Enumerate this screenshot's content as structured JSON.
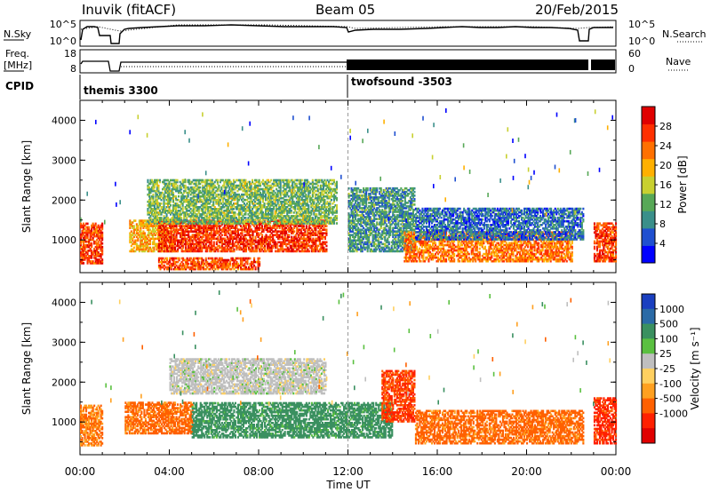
{
  "header": {
    "station": "Inuvik (fitACF)",
    "beam": "Beam 05",
    "date": "20/Feb/2015"
  },
  "top_panels": {
    "nsky_label": "N.Sky",
    "nsky_ticks": [
      "10^5",
      "10^0"
    ],
    "nsearch_label": "N.Search",
    "nsearch_ticks": [
      "10^5",
      "10^0"
    ],
    "freq_label": "Freq.",
    "freq_unit": "[MHz]",
    "freq_ticks": [
      "18",
      "8"
    ],
    "nave_label": "Nave",
    "nave_ticks": [
      "60",
      "0"
    ],
    "cpid_label": "CPID",
    "cpid_segments": [
      {
        "name": "themis 3300",
        "start_hour": 0
      },
      {
        "name": "twofsound -3503",
        "start_hour": 12
      }
    ]
  },
  "colors": {
    "power_scale": [
      "#0000ff",
      "#1f4fd0",
      "#3a8f8a",
      "#57a857",
      "#c8d030",
      "#ffb000",
      "#ff7000",
      "#ff3000",
      "#e00000"
    ],
    "velocity_scale": [
      "#1a3fc0",
      "#2a6aa6",
      "#3a9060",
      "#5ac040",
      "#bfbfbf",
      "#ffd060",
      "#ffa020",
      "#ff6000",
      "#ff2000",
      "#e00000"
    ]
  },
  "chart_data": [
    {
      "type": "heatmap",
      "name": "Power",
      "ylabel": "Slant Range [km]",
      "colorbar_label": "Power [dB]",
      "colorbar_ticks": [
        4,
        8,
        12,
        16,
        20,
        24,
        28
      ],
      "clim": [
        0,
        32
      ],
      "y_ticks": [
        1000,
        2000,
        3000,
        4000
      ],
      "ylim": [
        180,
        4500
      ],
      "xlim": [
        0,
        24
      ],
      "x_ticks": [
        "00:00",
        "04:00",
        "08:00",
        "12:00",
        "16:00",
        "20:00",
        "00:00"
      ],
      "regions": [
        {
          "t0": 0.0,
          "t1": 1.0,
          "r0": 400,
          "r1": 1400,
          "value": 26
        },
        {
          "t0": 2.2,
          "t1": 4.2,
          "r0": 700,
          "r1": 1500,
          "value": 20
        },
        {
          "t0": 3.5,
          "t1": 11.0,
          "r0": 700,
          "r1": 1500,
          "value": 27
        },
        {
          "t0": 3.0,
          "t1": 11.5,
          "r0": 1400,
          "r1": 2500,
          "value": 13
        },
        {
          "t0": 3.5,
          "t1": 8.0,
          "r0": 250,
          "r1": 550,
          "value": 25
        },
        {
          "t0": 12.0,
          "t1": 15.0,
          "r0": 700,
          "r1": 2300,
          "value": 10
        },
        {
          "t0": 14.5,
          "t1": 22.0,
          "r0": 450,
          "r1": 1200,
          "value": 23
        },
        {
          "t0": 15.0,
          "t1": 22.5,
          "r0": 1000,
          "r1": 1800,
          "value": 7
        },
        {
          "t0": 23.0,
          "t1": 24.0,
          "r0": 450,
          "r1": 1400,
          "value": 26
        }
      ]
    },
    {
      "type": "heatmap",
      "name": "Velocity",
      "ylabel": "Slant Range [km]",
      "colorbar_label": "Velocity [m s⁻¹]",
      "colorbar_ticks": [
        "1000",
        "500",
        "100",
        "25",
        "-25",
        "-100",
        "-500",
        "-1000"
      ],
      "y_ticks": [
        1000,
        2000,
        3000,
        4000
      ],
      "ylim": [
        180,
        4500
      ],
      "xlim": [
        0,
        24
      ],
      "x_ticks": [
        "00:00",
        "04:00",
        "08:00",
        "12:00",
        "16:00",
        "20:00",
        "00:00"
      ],
      "xlabel": "Time UT",
      "regions": [
        {
          "t0": 0.0,
          "t1": 1.0,
          "r0": 400,
          "r1": 1400,
          "value": -150
        },
        {
          "t0": 2.0,
          "t1": 5.0,
          "r0": 700,
          "r1": 1500,
          "value": -200
        },
        {
          "t0": 5.0,
          "t1": 14.0,
          "r0": 600,
          "r1": 1500,
          "value": 150
        },
        {
          "t0": 4.0,
          "t1": 11.0,
          "r0": 1700,
          "r1": 2600,
          "value": 0
        },
        {
          "t0": 13.5,
          "t1": 15.0,
          "r0": 1000,
          "r1": 2300,
          "value": -300
        },
        {
          "t0": 15.0,
          "t1": 22.5,
          "r0": 450,
          "r1": 1300,
          "value": -200
        },
        {
          "t0": 23.0,
          "t1": 24.0,
          "r0": 450,
          "r1": 1600,
          "value": -400
        }
      ]
    }
  ]
}
